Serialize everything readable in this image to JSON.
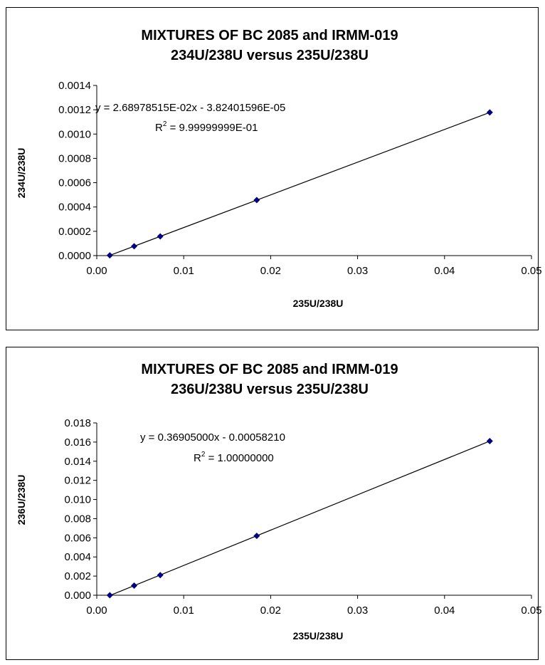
{
  "chart_data": [
    {
      "type": "scatter",
      "title": "MIXTURES OF BC 2085 and IRMM-019",
      "subtitle": "234U/238U versus 235U/238U",
      "xlabel": "235U/238U",
      "ylabel": "234U/238U",
      "xlim": [
        0,
        0.05
      ],
      "ylim": [
        0,
        0.0014
      ],
      "x_ticks": [
        "0.00",
        "0.01",
        "0.02",
        "0.03",
        "0.04",
        "0.05"
      ],
      "y_ticks": [
        "0.0000",
        "0.0002",
        "0.0004",
        "0.0006",
        "0.0008",
        "0.0010",
        "0.0012",
        "0.0014"
      ],
      "grid": false,
      "marker_color": "#000080",
      "series": [
        {
          "x": [
            0.0015,
            0.0043,
            0.0073,
            0.0184,
            0.0452
          ],
          "y": [
            2e-06,
            7.7e-05,
            0.000158,
            0.000457,
            0.001178
          ]
        }
      ],
      "trendline": {
        "slope": 0.0268978515,
        "intercept": -3.82401596e-05
      },
      "equation": {
        "prefix": "y = 2.68978515E-02x - 3.82401596E-05",
        "r2_label": "R",
        "r2_sup": "2",
        "r2_value": " = 9.99999999E-01"
      }
    },
    {
      "type": "scatter",
      "title": "MIXTURES OF BC 2085 and IRMM-019",
      "subtitle": "236U/238U versus 235U/238U",
      "xlabel": "235U/238U",
      "ylabel": "236U/238U",
      "xlim": [
        0,
        0.05
      ],
      "ylim": [
        0,
        0.018
      ],
      "x_ticks": [
        "0.00",
        "0.01",
        "0.02",
        "0.03",
        "0.04",
        "0.05"
      ],
      "y_ticks": [
        "0.000",
        "0.002",
        "0.004",
        "0.006",
        "0.008",
        "0.010",
        "0.012",
        "0.014",
        "0.016",
        "0.018"
      ],
      "grid": false,
      "marker_color": "#000080",
      "series": [
        {
          "x": [
            0.0015,
            0.0043,
            0.0073,
            0.0184,
            0.0452
          ],
          "y": [
            0.0,
            0.001,
            0.0021,
            0.0062,
            0.0161
          ]
        }
      ],
      "trendline": {
        "slope": 0.36905,
        "intercept": -0.0005821
      },
      "equation": {
        "prefix": "y = 0.36905000x - 0.00058210",
        "r2_label": "R",
        "r2_sup": "2",
        "r2_value": " = 1.00000000"
      }
    }
  ]
}
